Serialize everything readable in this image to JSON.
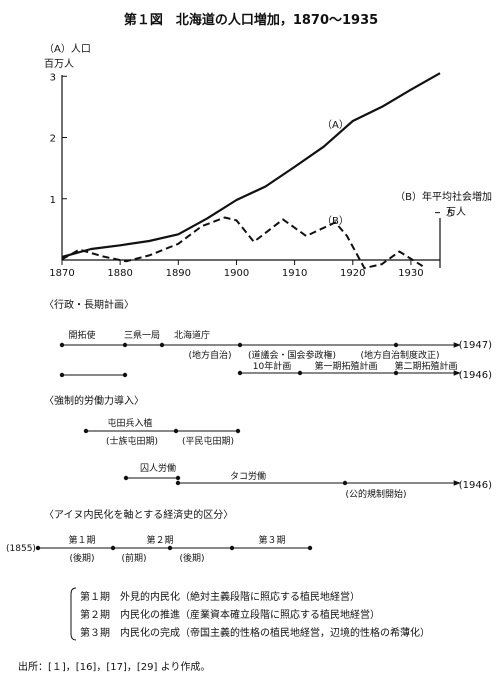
{
  "chart_data": [
    {
      "type": "line",
      "title": "第１図　北海道の人口増加，1870～1935",
      "left_axis": {
        "label": "（A）人口",
        "unit": "百万人",
        "ylim": [
          0,
          3.2
        ],
        "ticks": [
          1,
          2,
          3
        ],
        "tick_labels": [
          "1",
          "2",
          "3"
        ]
      },
      "right_axis": {
        "label": "（B）年平均社会増加",
        "unit": "万人",
        "ylim": [
          -1,
          10
        ],
        "ticks": [
          5
        ],
        "tick_labels": [
          "5"
        ]
      },
      "x_axis": {
        "xlim": [
          1870,
          1935
        ],
        "ticks": [
          1870,
          1880,
          1890,
          1900,
          1910,
          1920,
          1930
        ],
        "tick_labels": [
          "1870",
          "1880",
          "1890",
          "1900",
          "1910",
          "1920",
          "1930"
        ]
      },
      "series": [
        {
          "name": "（A）",
          "axis": "left",
          "style": "solid",
          "x": [
            1870,
            1875,
            1880,
            1885,
            1890,
            1895,
            1900,
            1905,
            1910,
            1915,
            1920,
            1925,
            1930,
            1935
          ],
          "y": [
            0.05,
            0.18,
            0.24,
            0.31,
            0.42,
            0.68,
            0.98,
            1.2,
            1.52,
            1.85,
            2.27,
            2.5,
            2.78,
            3.05
          ]
        },
        {
          "name": "（B）",
          "axis": "right",
          "style": "dashed",
          "x": [
            1870,
            1873,
            1877,
            1881,
            1885,
            1890,
            1894,
            1898,
            1900,
            1903,
            1908,
            1912,
            1917,
            1919,
            1922,
            1925,
            1928,
            1932
          ],
          "y": [
            0.2,
            1.2,
            0.5,
            0.0,
            0.6,
            1.8,
            3.6,
            4.5,
            4.2,
            2.0,
            4.3,
            2.6,
            4.0,
            2.6,
            -0.7,
            -0.3,
            1.0,
            -0.5
          ]
        }
      ]
    },
    {
      "type": "timeline",
      "sections": [
        {
          "title": "〈行政・長期計画〉",
          "labels": [
            "開拓使",
            "三県一局",
            "北海道庁",
            "(地方自治)",
            "(道議会・国会参政権)",
            "(地方自治制度改正)",
            "10年計画",
            "第一期拓殖計画",
            "第二期拓殖計画"
          ],
          "end_labels": [
            "(1947)",
            "(1946)"
          ]
        },
        {
          "title": "〈強制的労働力導入〉",
          "labels": [
            "屯田兵入植",
            "(士族屯田期)",
            "(平民屯田期)",
            "囚人労働",
            "タコ労働",
            "(公的規制開始)"
          ],
          "end_labels": [
            "(1946)"
          ]
        },
        {
          "title": "〈アイヌ内民化を軸とする経済史的区分〉",
          "start_label": "(1855)",
          "labels": [
            "第１期",
            "(後期)",
            "第２期",
            "(前期)",
            "(後期)",
            "第３期"
          ]
        }
      ]
    }
  ],
  "legend_notes": [
    "第１期　外見的内民化（絶対主義段階に照応する植民地経営）",
    "第２期　内民化の推進（産業資本確立段階に照応する植民地経営）",
    "第３期　内民化の完成（帝国主義的性格の植民地経営，辺境的性格の希薄化）"
  ],
  "source": "出所：[１]，[16]，[17]，[29] より作成。"
}
